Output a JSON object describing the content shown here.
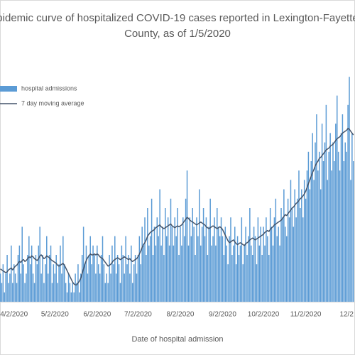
{
  "chart_data": {
    "type": "bar",
    "title": [
      "pidemic curve of hospitalized COVID-19 cases reported in Lexington-Fayette",
      "County, as of 1/5/2020"
    ],
    "x_label": "Date of hospital admission",
    "legend": "top-left",
    "ylim": [
      0,
      25
    ],
    "categories": [
      null,
      null,
      null,
      null,
      null,
      null,
      null,
      null,
      null,
      null,
      "4/2/2020",
      null,
      null,
      null,
      null,
      null,
      null,
      null,
      null,
      null,
      null,
      null,
      null,
      null,
      null,
      null,
      null,
      null,
      null,
      null,
      null,
      null,
      null,
      null,
      null,
      null,
      null,
      null,
      null,
      null,
      "5/2/2020",
      null,
      null,
      null,
      null,
      null,
      null,
      null,
      null,
      null,
      null,
      null,
      null,
      null,
      null,
      null,
      null,
      null,
      null,
      null,
      null,
      null,
      null,
      null,
      null,
      null,
      null,
      null,
      null,
      null,
      null,
      "6/2/2020",
      null,
      null,
      null,
      null,
      null,
      null,
      null,
      null,
      null,
      null,
      null,
      null,
      null,
      null,
      null,
      null,
      null,
      null,
      null,
      null,
      null,
      null,
      null,
      null,
      null,
      null,
      null,
      null,
      null,
      "7/2/2020",
      null,
      null,
      null,
      null,
      null,
      null,
      null,
      null,
      null,
      null,
      null,
      null,
      null,
      null,
      null,
      null,
      null,
      null,
      null,
      null,
      null,
      null,
      null,
      null,
      null,
      null,
      null,
      null,
      null,
      null,
      "8/2/2020",
      null,
      null,
      null,
      null,
      null,
      null,
      null,
      null,
      null,
      null,
      null,
      null,
      null,
      null,
      null,
      null,
      null,
      null,
      null,
      null,
      null,
      null,
      null,
      null,
      null,
      null,
      null,
      null,
      null,
      null,
      "9/2/2020",
      null,
      null,
      null,
      null,
      null,
      null,
      null,
      null,
      null,
      null,
      null,
      null,
      null,
      null,
      null,
      null,
      null,
      null,
      null,
      null,
      null,
      null,
      null,
      null,
      null,
      null,
      null,
      null,
      null,
      "10/2/2020",
      null,
      null,
      null,
      null,
      null,
      null,
      null,
      null,
      null,
      null,
      null,
      null,
      null,
      null,
      null,
      null,
      null,
      null,
      null,
      null,
      null,
      null,
      null,
      null,
      null,
      null,
      null,
      null,
      null,
      null,
      "11/2/2020",
      null,
      null,
      null,
      null,
      null,
      null,
      null,
      null,
      null,
      null,
      null,
      null,
      null,
      null,
      null,
      null,
      null,
      null,
      null,
      null,
      null,
      null,
      null,
      null,
      null,
      null,
      null,
      null,
      null,
      "12/2",
      null,
      null,
      null,
      null,
      null
    ],
    "series": [
      {
        "name": "hospital admissions",
        "type": "bar",
        "color": "#5b9bd5",
        "values": [
          3,
          2,
          4,
          1,
          3,
          5,
          2,
          3,
          6,
          2,
          4,
          3,
          2,
          5,
          6,
          3,
          8,
          4,
          2,
          3,
          5,
          7,
          4,
          6,
          3,
          2,
          5,
          4,
          6,
          8,
          3,
          5,
          2,
          4,
          7,
          3,
          5,
          6,
          2,
          4,
          3,
          5,
          2,
          4,
          6,
          3,
          7,
          4,
          2,
          1,
          3,
          2,
          1,
          2,
          1,
          3,
          2,
          4,
          1,
          3,
          5,
          8,
          4,
          6,
          3,
          5,
          7,
          4,
          6,
          5,
          3,
          6,
          4,
          3,
          5,
          7,
          4,
          2,
          3,
          2,
          5,
          3,
          6,
          4,
          7,
          3,
          5,
          4,
          2,
          6,
          5,
          3,
          7,
          4,
          5,
          3,
          6,
          2,
          4,
          5,
          3,
          5,
          7,
          4,
          8,
          6,
          9,
          5,
          10,
          6,
          7,
          11,
          5,
          8,
          6,
          9,
          7,
          12,
          6,
          8,
          5,
          10,
          7,
          9,
          6,
          11,
          8,
          6,
          9,
          7,
          10,
          5,
          8,
          6,
          9,
          7,
          11,
          14,
          6,
          9,
          7,
          10,
          8,
          5,
          9,
          7,
          12,
          6,
          8,
          10,
          7,
          9,
          5,
          8,
          11,
          6,
          7,
          9,
          6,
          10,
          8,
          7,
          9,
          7,
          5,
          8,
          6,
          4,
          7,
          9,
          5,
          6,
          8,
          4,
          7,
          5,
          6,
          9,
          4,
          6,
          8,
          5,
          7,
          10,
          6,
          5,
          8,
          7,
          4,
          9,
          6,
          8,
          5,
          8,
          6,
          9,
          7,
          5,
          10,
          8,
          6,
          9,
          11,
          7,
          8,
          6,
          10,
          9,
          12,
          8,
          7,
          11,
          9,
          13,
          10,
          8,
          12,
          9,
          11,
          14,
          10,
          12,
          9,
          13,
          11,
          14,
          16,
          12,
          15,
          18,
          13,
          17,
          20,
          14,
          16,
          12,
          19,
          15,
          17,
          21,
          13,
          16,
          18,
          14,
          17,
          15,
          19,
          22,
          16,
          14,
          18,
          20,
          15,
          17,
          16,
          21,
          24,
          13,
          18,
          15
        ]
      },
      {
        "name": "7 day moving average",
        "type": "line",
        "color": "#44546a",
        "values": [
          3.5,
          3.4,
          3.3,
          3.2,
          3.1,
          3.2,
          3.4,
          3.5,
          3.6,
          3.4,
          3.6,
          3.8,
          3.9,
          4.1,
          4.3,
          4.2,
          4.4,
          4.5,
          4.3,
          4.4,
          4.6,
          4.8,
          4.7,
          4.9,
          4.8,
          4.6,
          4.5,
          4.4,
          4.6,
          4.9,
          5.0,
          4.8,
          4.6,
          4.7,
          4.9,
          4.8,
          4.7,
          4.5,
          4.4,
          4.3,
          4.2,
          4.1,
          3.9,
          3.8,
          3.9,
          4.0,
          4.1,
          3.9,
          3.6,
          3.3,
          3.0,
          2.7,
          2.4,
          2.1,
          1.9,
          1.8,
          1.8,
          2.0,
          2.2,
          2.5,
          3.0,
          3.5,
          4.0,
          4.4,
          4.7,
          4.9,
          5.1,
          5.0,
          5.0,
          5.1,
          5.0,
          5.1,
          5.0,
          4.8,
          4.7,
          4.6,
          4.4,
          4.2,
          4.0,
          3.8,
          3.9,
          4.0,
          4.2,
          4.4,
          4.5,
          4.6,
          4.7,
          4.6,
          4.5,
          4.6,
          4.7,
          4.8,
          4.7,
          4.6,
          4.5,
          4.6,
          4.4,
          4.3,
          4.4,
          4.5,
          4.6,
          4.8,
          5.1,
          5.4,
          5.8,
          6.1,
          6.3,
          6.6,
          7.0,
          7.2,
          7.4,
          7.5,
          7.6,
          7.7,
          7.9,
          8.0,
          8.1,
          8.2,
          8.0,
          7.9,
          7.8,
          7.9,
          8.0,
          8.1,
          8.2,
          8.3,
          8.1,
          8.0,
          7.9,
          8.0,
          8.1,
          8.0,
          8.1,
          8.2,
          8.4,
          8.6,
          8.8,
          9.0,
          8.9,
          8.7,
          8.6,
          8.5,
          8.4,
          8.3,
          8.2,
          8.3,
          8.4,
          8.5,
          8.4,
          8.3,
          8.2,
          8.0,
          7.9,
          7.8,
          7.9,
          8.0,
          8.1,
          8.0,
          7.9,
          7.8,
          7.9,
          8.0,
          7.9,
          7.7,
          7.4,
          7.1,
          6.8,
          6.5,
          6.3,
          6.4,
          6.5,
          6.6,
          6.4,
          6.2,
          6.1,
          6.2,
          6.3,
          6.2,
          6.1,
          6.0,
          6.2,
          6.3,
          6.4,
          6.6,
          6.7,
          6.8,
          6.7,
          6.6,
          6.7,
          6.8,
          6.9,
          7.0,
          7.1,
          7.2,
          7.4,
          7.5,
          7.6,
          7.5,
          7.7,
          7.9,
          8.0,
          8.2,
          8.3,
          8.4,
          8.5,
          8.6,
          8.7,
          8.9,
          9.1,
          9.3,
          9.2,
          9.4,
          9.6,
          9.8,
          10.0,
          10.1,
          10.3,
          10.5,
          10.6,
          10.8,
          11.0,
          11.1,
          11.3,
          11.5,
          11.8,
          12.2,
          12.6,
          13.0,
          13.4,
          13.8,
          14.1,
          14.5,
          14.8,
          15.0,
          15.3,
          15.4,
          15.6,
          15.8,
          16.0,
          16.2,
          16.3,
          16.4,
          16.6,
          16.7,
          16.8,
          17.0,
          17.2,
          17.4,
          17.5,
          17.6,
          17.8,
          18.0,
          18.1,
          18.2,
          18.3,
          18.5,
          18.4,
          18.2,
          18.0,
          17.8
        ]
      }
    ]
  }
}
